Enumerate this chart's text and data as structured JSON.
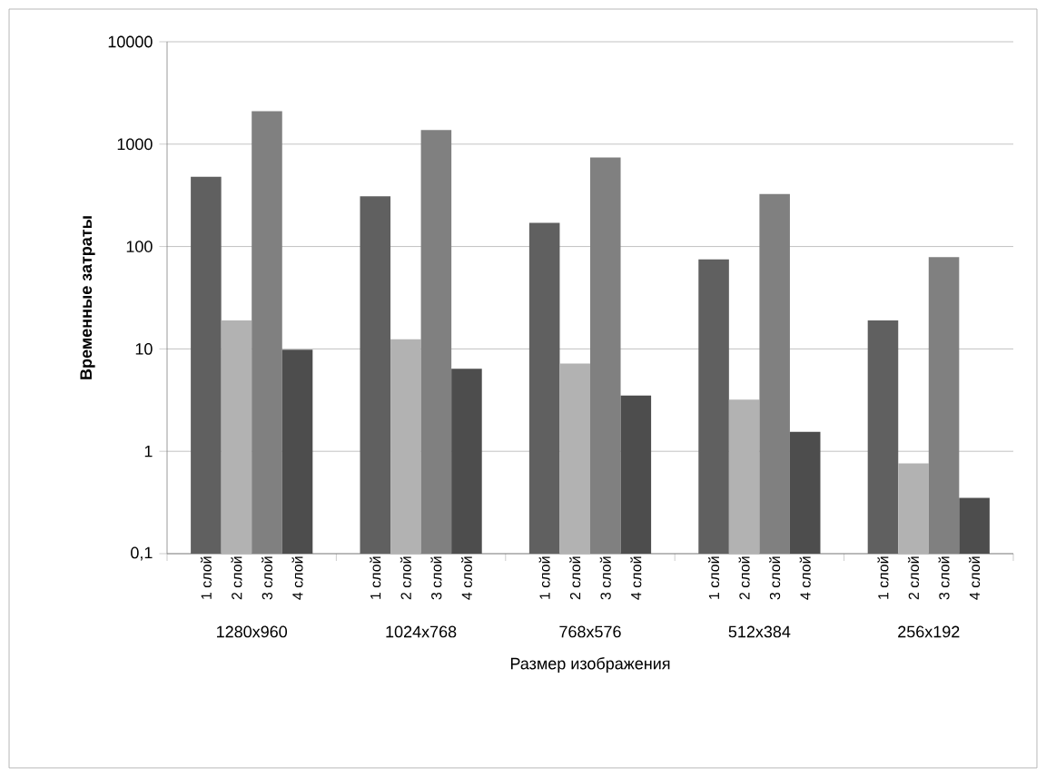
{
  "chart_data": {
    "type": "bar",
    "xlabel": "Размер изображения",
    "ylabel": "Временные затраты",
    "categories": [
      "1280x960",
      "1024x768",
      "768x576",
      "512x384",
      "256x192"
    ],
    "series": [
      {
        "name": "1 слой",
        "color": "#606060",
        "values": [
          480,
          310,
          170,
          75,
          19
        ]
      },
      {
        "name": "2 слой",
        "color": "#b2b2b2",
        "values": [
          19,
          12.4,
          7.2,
          3.2,
          0.76
        ]
      },
      {
        "name": "3 слой",
        "color": "#808080",
        "values": [
          2100,
          1370,
          740,
          325,
          79
        ]
      },
      {
        "name": "4 слой",
        "color": "#4d4d4d",
        "values": [
          9.8,
          6.4,
          3.5,
          1.55,
          0.35
        ]
      }
    ],
    "log": "y",
    "ylim": [
      0.1,
      10000
    ],
    "yticks": [
      {
        "value": 0.1,
        "label": "0,1"
      },
      1,
      10,
      100,
      1000,
      10000
    ],
    "grid": "y",
    "legend": false
  }
}
